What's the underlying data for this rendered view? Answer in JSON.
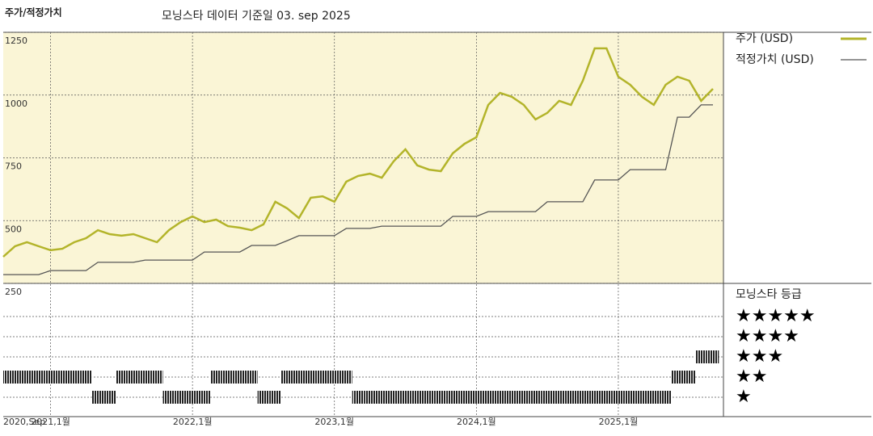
{
  "chart_data": {
    "type": "line",
    "title": "주가/적정가치",
    "subtitle": "모닝스타 데이터 기준일 03. sep 2025",
    "x": [
      "2020-09",
      "2020-10",
      "2020-11",
      "2020-12",
      "2021-01",
      "2021-02",
      "2021-03",
      "2021-04",
      "2021-05",
      "2021-06",
      "2021-07",
      "2021-08",
      "2021-09",
      "2021-10",
      "2021-11",
      "2021-12",
      "2022-01",
      "2022-02",
      "2022-03",
      "2022-04",
      "2022-05",
      "2022-06",
      "2022-07",
      "2022-08",
      "2022-09",
      "2022-10",
      "2022-11",
      "2022-12",
      "2023-01",
      "2023-02",
      "2023-03",
      "2023-04",
      "2023-05",
      "2023-06",
      "2023-07",
      "2023-08",
      "2023-09",
      "2023-10",
      "2023-11",
      "2023-12",
      "2024-01",
      "2024-02",
      "2024-03",
      "2024-04",
      "2024-05",
      "2024-06",
      "2024-07",
      "2024-08",
      "2024-09",
      "2024-10",
      "2024-11",
      "2024-12",
      "2025-01",
      "2025-02",
      "2025-03",
      "2025-04",
      "2025-05",
      "2025-06",
      "2025-07",
      "2025-08",
      "2025-09"
    ],
    "series": [
      {
        "name": "주가 (USD)",
        "color": "#b3b42a",
        "values": [
          356,
          398,
          414,
          398,
          382,
          388,
          414,
          430,
          462,
          446,
          440,
          446,
          430,
          414,
          462,
          494,
          517,
          494,
          504,
          478,
          472,
          462,
          485,
          575,
          549,
          510,
          591,
          597,
          575,
          655,
          678,
          687,
          671,
          736,
          784,
          720,
          703,
          697,
          768,
          806,
          832,
          961,
          1009,
          993,
          961,
          903,
          929,
          977,
          961,
          1057,
          1186,
          1186,
          1073,
          1041,
          993,
          961,
          1041,
          1073,
          1057,
          977,
          1025
        ]
      },
      {
        "name": "적정가치 (USD)",
        "color": "#555555",
        "values": [
          285,
          285,
          285,
          285,
          301,
          301,
          301,
          301,
          334,
          334,
          334,
          334,
          343,
          343,
          343,
          343,
          343,
          375,
          375,
          375,
          375,
          401,
          401,
          401,
          420,
          440,
          440,
          440,
          440,
          469,
          469,
          469,
          478,
          478,
          478,
          478,
          478,
          478,
          517,
          517,
          517,
          536,
          536,
          536,
          536,
          536,
          575,
          575,
          575,
          575,
          662,
          662,
          662,
          703,
          703,
          703,
          703,
          912,
          912,
          961,
          961
        ]
      }
    ],
    "ylim": [
      250,
      1250
    ],
    "yticks": [
      250,
      500,
      750,
      1000,
      1250
    ],
    "xticks": [
      {
        "value": "2020-09",
        "label": "2020,Sep"
      },
      {
        "value": "2021-01",
        "label": "2021,1월"
      },
      {
        "value": "2022-01",
        "label": "2022,1월"
      },
      {
        "value": "2023-01",
        "label": "2023,1월"
      },
      {
        "value": "2024-01",
        "label": "2024,1월"
      },
      {
        "value": "2025-01",
        "label": "2025,1월"
      }
    ],
    "grid": true,
    "rating": {
      "title": "모닝스타 등급",
      "values": [
        2,
        2,
        2,
        2,
        2,
        2,
        2,
        2,
        1,
        1,
        2,
        2,
        2,
        2,
        1,
        1,
        1,
        1,
        2,
        2,
        2,
        2,
        1,
        1,
        2,
        2,
        2,
        2,
        2,
        2,
        1,
        1,
        1,
        1,
        1,
        1,
        1,
        1,
        1,
        1,
        1,
        1,
        1,
        1,
        1,
        1,
        1,
        1,
        1,
        1,
        1,
        1,
        1,
        1,
        1,
        1,
        1,
        2,
        2,
        3,
        3
      ],
      "ticks": [
        {
          "value": 5,
          "label": "★★★★★"
        },
        {
          "value": 4,
          "label": "★★★★"
        },
        {
          "value": 3,
          "label": "★★★"
        },
        {
          "value": 2,
          "label": "★★"
        },
        {
          "value": 1,
          "label": "★"
        }
      ]
    }
  }
}
